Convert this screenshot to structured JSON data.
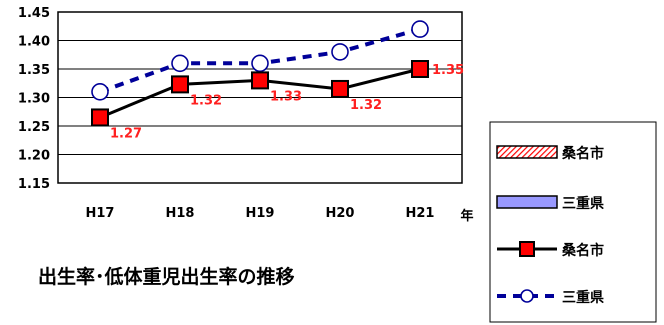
{
  "chart_data": {
    "type": "line",
    "title": "出生率･低体重児出生率の推移",
    "xlabel": "年",
    "ylabel": "",
    "categories": [
      "H17",
      "H18",
      "H19",
      "H20",
      "H21"
    ],
    "ylim": [
      1.15,
      1.45
    ],
    "yticks": [
      1.45,
      1.4,
      1.35,
      1.3,
      1.25,
      1.2,
      1.15
    ],
    "ytick_labels": [
      "1.45",
      "1.40",
      "1.35",
      "1.30",
      "1.25",
      "1.20",
      "1.15"
    ],
    "grid": true,
    "legend_position": "right",
    "series": [
      {
        "name": "桑名市",
        "style": "solid-line-square-marker",
        "color": "#000000",
        "marker_color": "#ff0000",
        "values": [
          1.265,
          1.323,
          1.33,
          1.315,
          1.35
        ],
        "labels": [
          "1.27",
          "1.32",
          "1.33",
          "1.32",
          "1.35"
        ],
        "label_color": "#ff2020"
      },
      {
        "name": "三重県",
        "style": "dashed-line-circle-marker",
        "color": "#000099",
        "values": [
          1.31,
          1.36,
          1.36,
          1.38,
          1.42
        ]
      }
    ],
    "legend": [
      {
        "name": "桑名市",
        "swatch": "hatched-bar",
        "color": "#ff0000"
      },
      {
        "name": "三重県",
        "swatch": "bar",
        "color": "#9999ff"
      },
      {
        "name": "桑名市",
        "swatch": "solid-line-square",
        "color": "#000000"
      },
      {
        "name": "三重県",
        "swatch": "dashed-line-circle",
        "color": "#000099"
      }
    ]
  }
}
